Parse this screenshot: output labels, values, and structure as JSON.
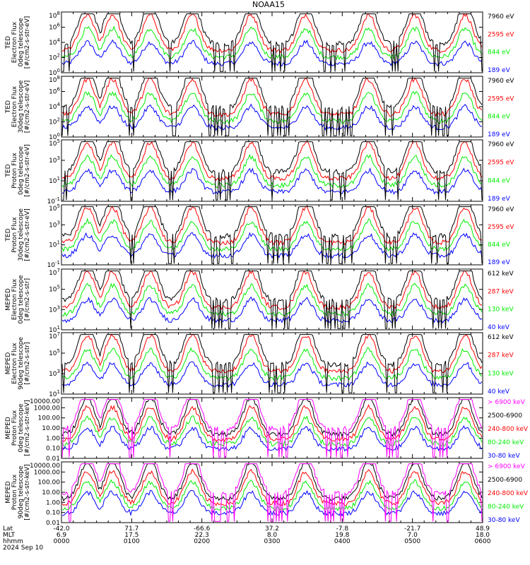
{
  "title": "NOAA15",
  "colors": {
    "blue": "#0000ff",
    "red": "#ff0000",
    "green": "#00ee00",
    "black": "#000000",
    "magenta": "#ff00ff"
  },
  "footer": {
    "date": "2024 Sep 10",
    "row_labels": [
      "Lat",
      "MLT",
      "hhmm"
    ],
    "ticks": [
      {
        "lat": "-42.0",
        "mlt": "6.9",
        "hhmm": "0000"
      },
      {
        "lat": "71.7",
        "mlt": "17.5",
        "hhmm": "0100"
      },
      {
        "lat": "-66.6",
        "mlt": "22.3",
        "hhmm": "0200"
      },
      {
        "lat": "37.2",
        "mlt": "8.0",
        "hhmm": "0300"
      },
      {
        "lat": "-7.8",
        "mlt": "19.8",
        "hhmm": "0400"
      },
      {
        "lat": "-21.7",
        "mlt": "7.0",
        "hhmm": "0500"
      },
      {
        "lat": "48.9",
        "mlt": "18.0",
        "hhmm": "0600"
      }
    ]
  },
  "chart_data": [
    {
      "type": "line",
      "scale": "log",
      "ylabel": [
        "TED",
        "Electron Flux",
        "0deg telescope",
        "[#/cm2-s-str-eV]"
      ],
      "y_ticks": [
        "10^0",
        "10^2",
        "10^4",
        "10^6",
        "10^8"
      ],
      "ylim": [
        1,
        100000000
      ],
      "series": [
        {
          "name": "7960 eV",
          "color": "#000000"
        },
        {
          "name": "2595 eV",
          "color": "#ff0000"
        },
        {
          "name": "844 eV",
          "color": "#00ee00"
        },
        {
          "name": "189 eV",
          "color": "#0000ff"
        }
      ]
    },
    {
      "type": "line",
      "scale": "log",
      "ylabel": [
        "TED",
        "Electron Flux",
        "30deg telescope",
        "[#/cm2-s-str-eV]"
      ],
      "y_ticks": [
        "10^0",
        "10^2",
        "10^4",
        "10^6",
        "10^8"
      ],
      "ylim": [
        1,
        100000000
      ],
      "series": [
        {
          "name": "7960 eV",
          "color": "#000000"
        },
        {
          "name": "2595 eV",
          "color": "#ff0000"
        },
        {
          "name": "844 eV",
          "color": "#00ee00"
        },
        {
          "name": "189 eV",
          "color": "#0000ff"
        }
      ]
    },
    {
      "type": "line",
      "scale": "log",
      "ylabel": [
        "TED",
        "Proton Flux",
        "0deg telescope",
        "[#/cm2-s-str-eV]"
      ],
      "y_ticks": [
        "10^-1",
        "10^1",
        "10^3",
        "10^5"
      ],
      "ylim": [
        0.1,
        100000
      ],
      "series": [
        {
          "name": "7960 eV",
          "color": "#000000"
        },
        {
          "name": "2595 eV",
          "color": "#ff0000"
        },
        {
          "name": "844 eV",
          "color": "#00ee00"
        },
        {
          "name": "189 eV",
          "color": "#0000ff"
        }
      ]
    },
    {
      "type": "line",
      "scale": "log",
      "ylabel": [
        "TED",
        "Proton Flux",
        "30deg telescope",
        "[#/cm2-s-str-eV]"
      ],
      "y_ticks": [
        "10^-1",
        "10^1",
        "10^3",
        "10^5"
      ],
      "ylim": [
        0.1,
        100000
      ],
      "series": [
        {
          "name": "7960 eV",
          "color": "#000000"
        },
        {
          "name": "2595 eV",
          "color": "#ff0000"
        },
        {
          "name": "844 eV",
          "color": "#00ee00"
        },
        {
          "name": "189 eV",
          "color": "#0000ff"
        }
      ]
    },
    {
      "type": "line",
      "scale": "log",
      "ylabel": [
        "MEPED",
        "Electron Flux",
        "0deg telescope",
        "[#/cm2-s-str]"
      ],
      "y_ticks": [
        "10^1",
        "10^3",
        "10^5",
        "10^7"
      ],
      "ylim": [
        10,
        10000000
      ],
      "series": [
        {
          "name": "612 keV",
          "color": "#000000"
        },
        {
          "name": "287 keV",
          "color": "#ff0000"
        },
        {
          "name": "130 keV",
          "color": "#00ee00"
        },
        {
          "name": "40 keV",
          "color": "#0000ff"
        }
      ]
    },
    {
      "type": "line",
      "scale": "log",
      "ylabel": [
        "MEPED",
        "Electron Flux",
        "90deg telescope",
        "[#/cm2-s-str]"
      ],
      "y_ticks": [
        "10^1",
        "10^3",
        "10^5",
        "10^7"
      ],
      "ylim": [
        10,
        10000000
      ],
      "series": [
        {
          "name": "612 keV",
          "color": "#000000"
        },
        {
          "name": "287 keV",
          "color": "#ff0000"
        },
        {
          "name": "130 keV",
          "color": "#00ee00"
        },
        {
          "name": "40 keV",
          "color": "#0000ff"
        }
      ]
    },
    {
      "type": "line",
      "scale": "log",
      "ylabel": [
        "MEPED",
        "Proton Flux",
        "0deg telescope",
        "[#/cm2-s-str-keV]"
      ],
      "y_ticks": [
        "0.01",
        "0.10",
        "1.00",
        "10.00",
        "100.00",
        "1000.00",
        "10000.00"
      ],
      "ylim": [
        0.01,
        10000
      ],
      "series": [
        {
          "name": "> 6900 keV",
          "color": "#ff00ff"
        },
        {
          "name": "2500-6900",
          "color": "#000000"
        },
        {
          "name": "240-800 keV",
          "color": "#ff0000"
        },
        {
          "name": "80-240 keV",
          "color": "#00ee00"
        },
        {
          "name": "30-80 keV",
          "color": "#0000ff"
        }
      ]
    },
    {
      "type": "line",
      "scale": "log",
      "ylabel": [
        "MEPED",
        "Proton Flux",
        "90deg telescope",
        "[#/cm2-s-str-keV]"
      ],
      "y_ticks": [
        "0.01",
        "0.10",
        "1.00",
        "10.00",
        "100.00",
        "1000.00",
        "10000.00"
      ],
      "ylim": [
        0.01,
        10000
      ],
      "series": [
        {
          "name": "> 6900 keV",
          "color": "#ff00ff"
        },
        {
          "name": "2500-6900",
          "color": "#000000"
        },
        {
          "name": "240-800 keV",
          "color": "#ff0000"
        },
        {
          "name": "80-240 keV",
          "color": "#00ee00"
        },
        {
          "name": "30-80 keV",
          "color": "#0000ff"
        }
      ]
    }
  ]
}
